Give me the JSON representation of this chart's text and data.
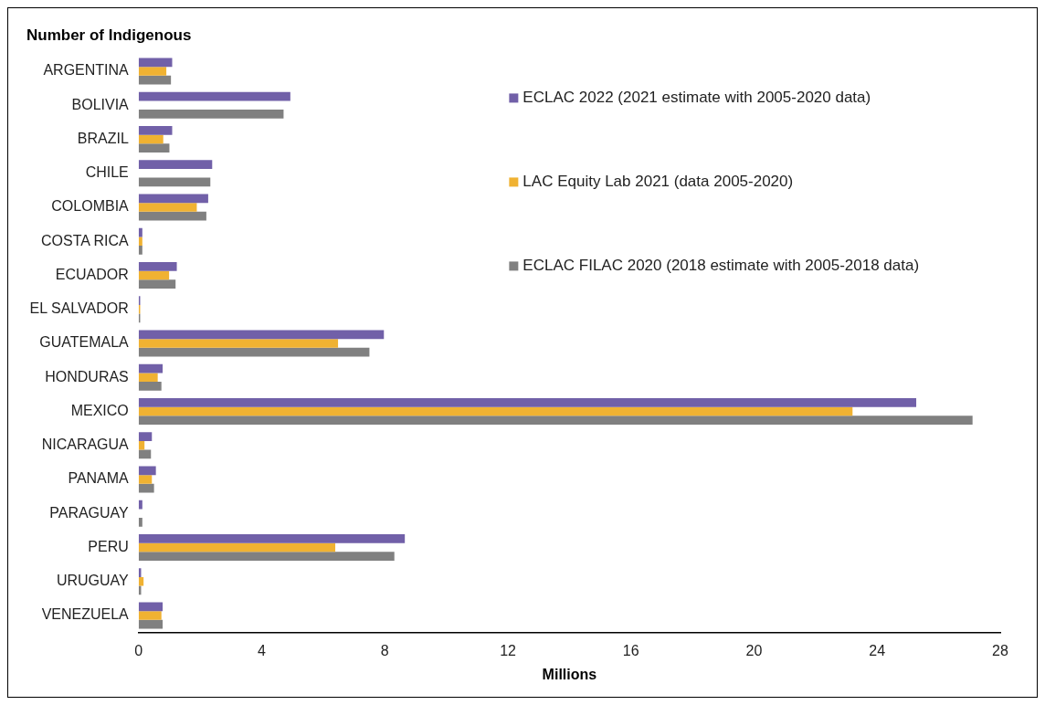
{
  "chart_data": {
    "type": "bar",
    "orientation": "horizontal",
    "title": "Number of Indigenous",
    "xlabel": "Millions",
    "categories": [
      "ARGENTINA",
      "BOLIVIA",
      "BRAZIL",
      "CHILE",
      "COLOMBIA",
      "COSTA RICA",
      "ECUADOR",
      "EL SALVADOR",
      "GUATEMALA",
      "HONDURAS",
      "MEXICO",
      "NICARAGUA",
      "PANAMA",
      "PARAGUAY",
      "PERU",
      "URUGUAY",
      "VENEZUELA"
    ],
    "series": [
      {
        "name": "ECLAC 2022 (2021 estimate with 2005-2020 data)",
        "color": "#7160a8",
        "values": [
          1.09,
          4.93,
          1.09,
          2.39,
          2.26,
          0.12,
          1.24,
          0.05,
          7.97,
          0.78,
          25.27,
          0.43,
          0.56,
          0.12,
          8.65,
          0.08,
          0.78
        ]
      },
      {
        "name": "LAC Equity Lab 2021 (data 2005-2020)",
        "color": "#f0b232",
        "values": [
          0.9,
          null,
          0.8,
          null,
          1.89,
          0.12,
          0.99,
          0.05,
          6.48,
          0.62,
          23.2,
          0.19,
          0.43,
          null,
          6.39,
          0.16,
          0.74
        ]
      },
      {
        "name": "ECLAC FILAC 2020 (2018 estimate with 2005-2018 data)",
        "color": "#808080",
        "values": [
          1.05,
          4.71,
          1.0,
          2.33,
          2.2,
          0.12,
          1.2,
          0.05,
          7.5,
          0.74,
          27.1,
          0.4,
          0.5,
          0.12,
          8.31,
          0.08,
          0.78
        ]
      }
    ],
    "xlim": [
      0,
      28
    ],
    "xticks": [
      0,
      4,
      8,
      12,
      16,
      20,
      24,
      28
    ],
    "grid": false,
    "legend": "top right"
  }
}
